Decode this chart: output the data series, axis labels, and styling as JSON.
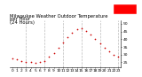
{
  "title": "Milwaukee Weather Outdoor Temperature per Hour (24 Hours)",
  "hours": [
    0,
    1,
    2,
    3,
    4,
    5,
    6,
    7,
    8,
    9,
    10,
    11,
    12,
    13,
    14,
    15,
    16,
    17,
    18,
    19,
    20,
    21,
    22,
    23
  ],
  "temps": [
    27.5,
    26.8,
    26.0,
    25.5,
    25.0,
    24.8,
    25.2,
    26.0,
    28.5,
    31.0,
    34.5,
    38.0,
    41.5,
    44.0,
    46.5,
    47.0,
    45.5,
    43.0,
    40.0,
    37.5,
    34.5,
    32.0,
    30.0,
    28.5
  ],
  "dot_color": "#cc0000",
  "bg_color": "#ffffff",
  "grid_color": "#bbbbbb",
  "title_fontsize": 3.8,
  "tick_fontsize": 3.2,
  "legend_color": "#ff0000",
  "ylim": [
    22,
    52
  ],
  "yticks": [
    25,
    30,
    35,
    40,
    45,
    50
  ],
  "grid_hours": [
    3,
    7,
    11,
    15,
    19,
    23
  ],
  "xtick_labels": [
    "0",
    "1",
    "2",
    "3",
    "4",
    "5",
    "6",
    "7",
    "8",
    "9",
    "10",
    "11",
    "12",
    "13",
    "14",
    "15",
    "16",
    "17",
    "18",
    "19",
    "20",
    "21",
    "22",
    "23"
  ]
}
